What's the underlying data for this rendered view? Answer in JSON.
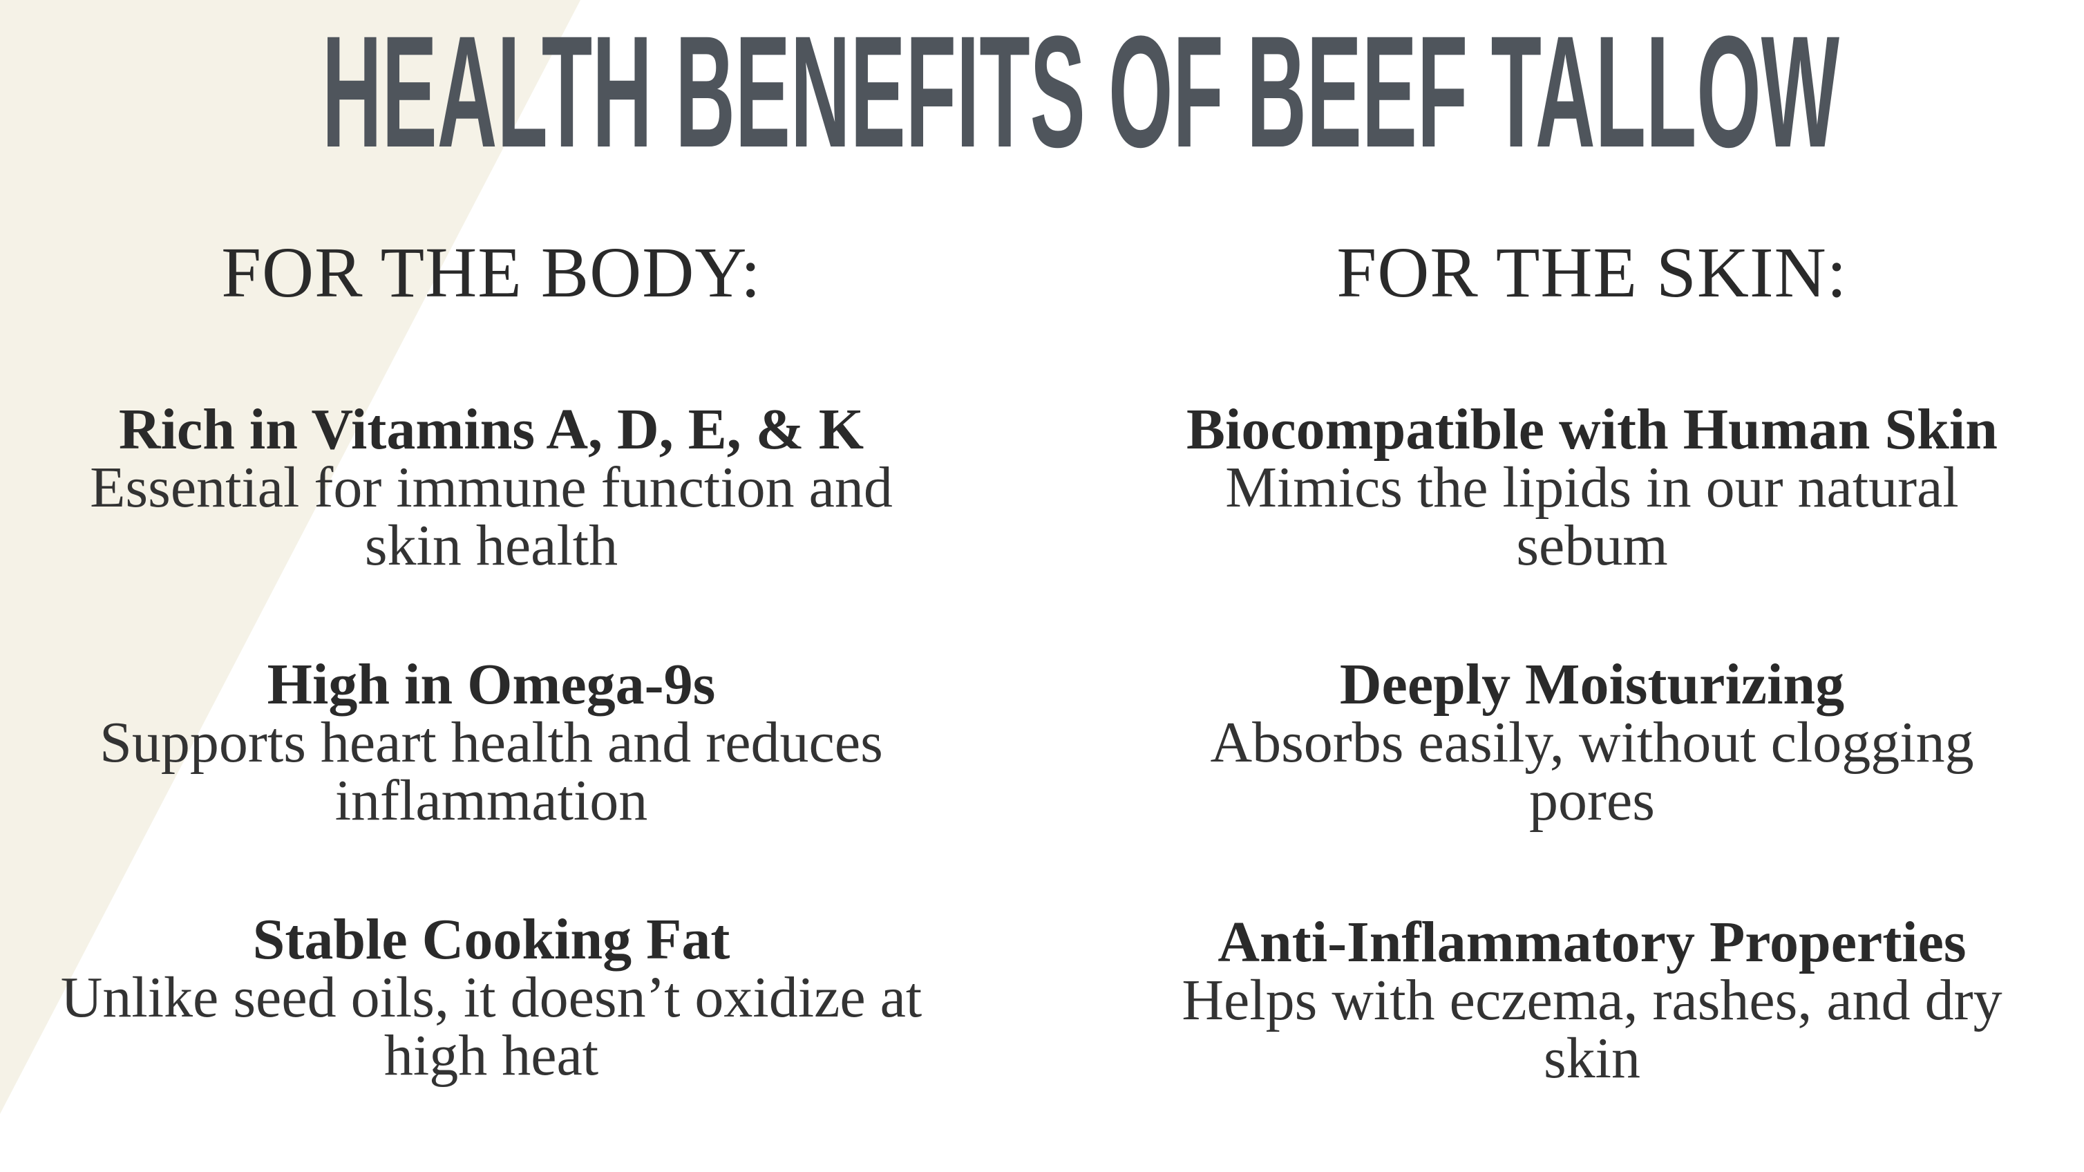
{
  "title": "HEALTH BENEFITS OF BEEF TALLOW",
  "columns": [
    {
      "heading": "FOR THE BODY:",
      "items": [
        {
          "title": "Rich in Vitamins A, D, E, & K",
          "lines": [
            "Essential for immune function and",
            "skin health"
          ]
        },
        {
          "title": "High in Omega-9s",
          "lines": [
            "Supports heart health and reduces",
            "inflammation"
          ]
        },
        {
          "title": "Stable Cooking Fat",
          "lines": [
            "Unlike seed oils, it doesn’t oxidize at",
            "high heat"
          ]
        }
      ]
    },
    {
      "heading": "FOR THE SKIN:",
      "items": [
        {
          "title": "Biocompatible with Human Skin",
          "lines": [
            "Mimics the lipids in our natural",
            "sebum"
          ]
        },
        {
          "title": "Deeply Moisturizing",
          "lines": [
            "Absorbs easily, without clogging",
            "pores"
          ]
        },
        {
          "title": "Anti-Inflammatory Properties",
          "lines": [
            "Helps with eczema, rashes, and dry",
            "skin"
          ]
        }
      ]
    }
  ]
}
